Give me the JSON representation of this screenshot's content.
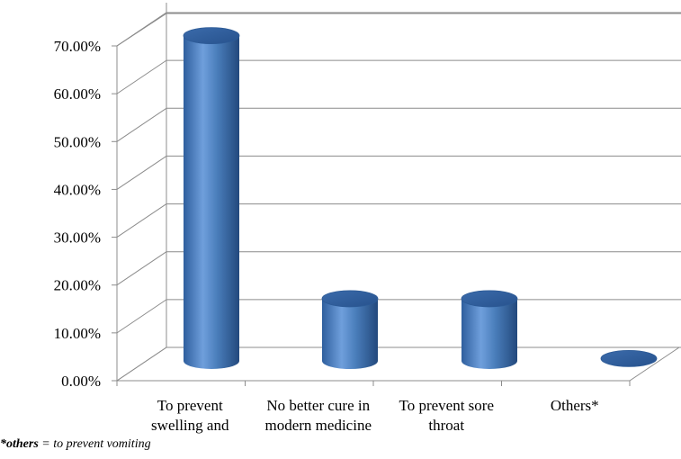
{
  "chart_data": {
    "type": "bar",
    "style": "3d-cylinder",
    "categories": [
      [
        "To prevent",
        "swelling and"
      ],
      [
        "No better cure in",
        "modern medicine"
      ],
      [
        "To prevent sore",
        "throat"
      ],
      [
        "Others*"
      ]
    ],
    "values": [
      68,
      13,
      13,
      0.5
    ],
    "yticks": [
      "0.00%",
      "10.00%",
      "20.00%",
      "30.00%",
      "40.00%",
      "50.00%",
      "60.00%",
      "70.00%"
    ],
    "ylim": [
      0,
      70
    ],
    "grid": true,
    "bar_color": "#4a7ebb",
    "title": "",
    "xlabel": "",
    "ylabel": ""
  },
  "footnote": {
    "bold": "*others",
    "rest": " = to prevent vomiting"
  }
}
